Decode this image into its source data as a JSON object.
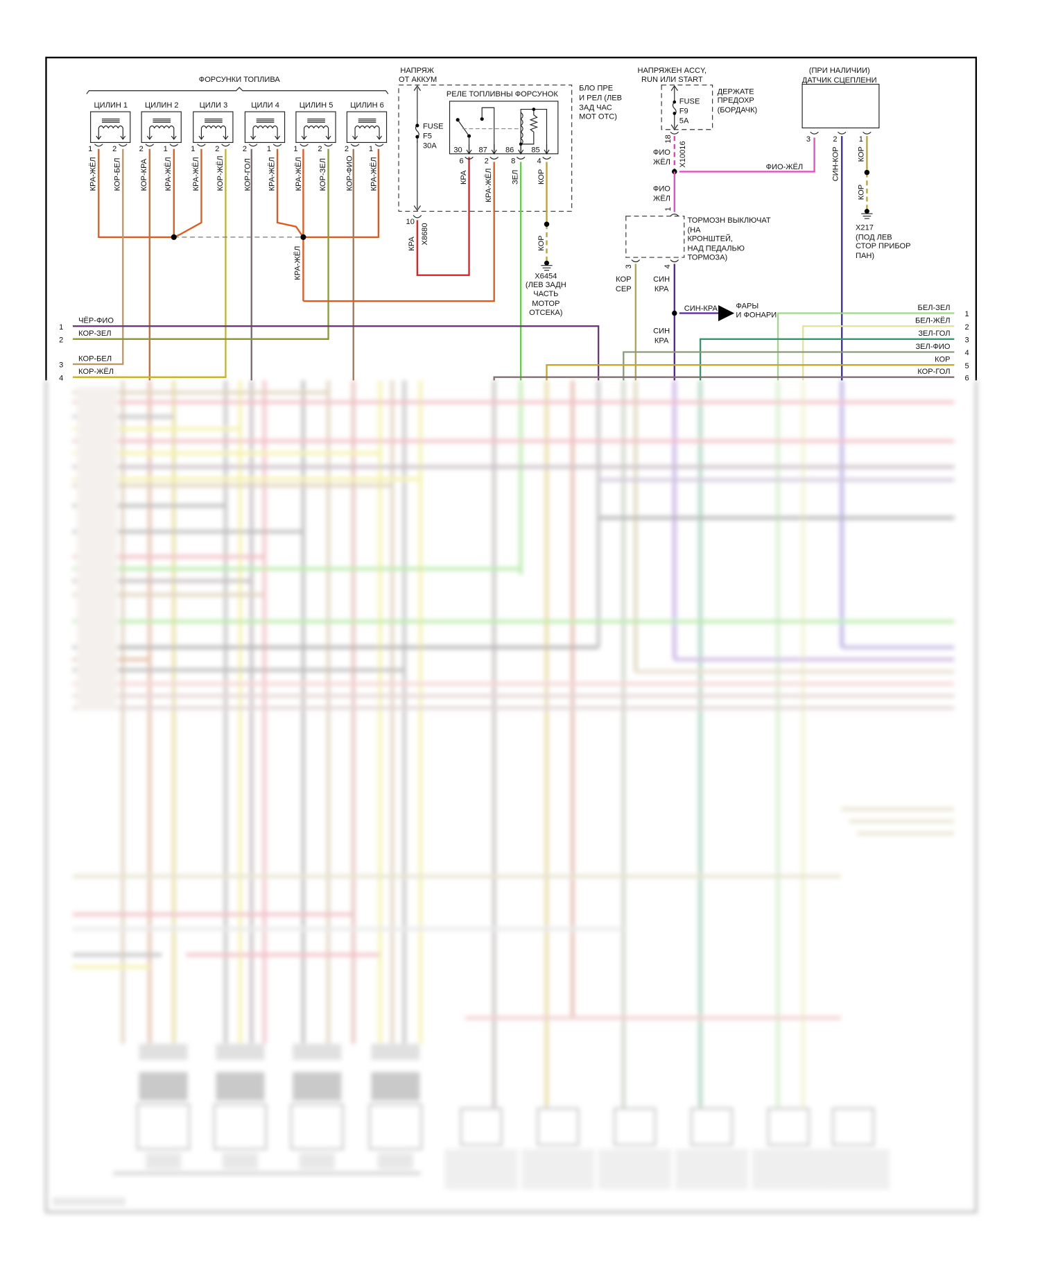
{
  "injectors": {
    "title": "ФОРСУНКИ ТОПЛИВА",
    "items": [
      {
        "label": "ЦИЛИН 1",
        "pins": [
          "1",
          "2"
        ],
        "wires": [
          "КРА-ЖЁЛ",
          "КОР-БЕЛ"
        ]
      },
      {
        "label": "ЦИЛИН 2",
        "pins": [
          "2",
          "1"
        ],
        "wires": [
          "КОР-КРА",
          "КРА-ЖЁЛ"
        ]
      },
      {
        "label": "ЦИЛИ 3",
        "pins": [
          "1",
          "2"
        ],
        "wires": [
          "КРА-ЖЁЛ",
          "КОР-ЖЁЛ"
        ]
      },
      {
        "label": "ЦИЛИ 4",
        "pins": [
          "2",
          "1"
        ],
        "wires": [
          "КОР-ГОЛ",
          "КРА-ЖЁЛ"
        ]
      },
      {
        "label": "ЦИЛИН 5",
        "pins": [
          "1",
          "2"
        ],
        "wires": [
          "КРА-ЖЁЛ",
          "КОР-ЗЕЛ"
        ]
      },
      {
        "label": "ЦИЛИН 6",
        "pins": [
          "2",
          "1"
        ],
        "wires": [
          "КОР-ФИО",
          "КРА-ЖЁЛ"
        ]
      }
    ],
    "splice_wire": "КРА-ЖЁЛ"
  },
  "battery": {
    "label_1": "НАПРЯЖ",
    "label_2": "ОТ АККУМ",
    "fuse": [
      "FUSE",
      "F5",
      "30A"
    ],
    "pin": "10",
    "wire": "КРА",
    "connector": "X8680"
  },
  "relay": {
    "title": "РЕЛЕ ТОПЛИВНЫ ФОРСУНОК",
    "terminals": [
      "30",
      "87",
      "86",
      "85"
    ],
    "pins": [
      "6",
      "2",
      "8",
      "4"
    ],
    "wires": [
      "КРА",
      "КРА-ЖЁЛ",
      "ЗЕЛ",
      "КОР"
    ],
    "box_label": [
      "БЛО ПРЕ",
      "И РЕЛ (ЛЕВ",
      "ЗАД ЧАС",
      "МОТ ОТС)"
    ],
    "ground_wire": "КОР",
    "ground": [
      "X6454",
      "(ЛЕВ ЗАДН",
      "ЧАСТЬ",
      "МОТОР",
      "ОТСЕКА)"
    ]
  },
  "accy": {
    "label_1": "НАПРЯЖЕН ACCY,",
    "label_2": "RUN ИЛИ START",
    "fuse": [
      "FUSE",
      "F9",
      "5A"
    ],
    "holder": [
      "ДЕРЖАТЕ",
      "ПРЕДОХР",
      "(БОРДАЧК)"
    ],
    "pin": "18",
    "connector": "X10016",
    "wire_1": [
      "ФИО",
      "ЖЁЛ"
    ],
    "wire_2": [
      "ФИО",
      "ЖЁЛ"
    ],
    "branch_wire": "ФИО-ЖЁЛ"
  },
  "brake_switch": {
    "label": [
      "ТОРМОЗН ВЫКЛЮЧАТ",
      "(НА",
      "КРОНШТЕЙ,",
      "НАД ПЕДАЛЬЮ",
      "ТОРМОЗА)"
    ],
    "pin_in": "1",
    "pins": [
      "3",
      "4"
    ],
    "wire_3": [
      "КОР",
      "СЕР"
    ],
    "wire_4": [
      "СИН",
      "КРА"
    ],
    "wire_4b": [
      "СИН",
      "КРА"
    ],
    "arrow_wire": "СИН-КРА",
    "arrow_target": [
      "ФАРЫ",
      "И ФОНАРИ"
    ]
  },
  "clutch": {
    "label_1": "(ПРИ НАЛИЧИИ)",
    "label_2": "ДАТЧИК СЦЕПЛЕНИ",
    "pins": [
      "3",
      "2",
      "1"
    ],
    "wire_2": "СИН-КОР",
    "wire_1": "КОР",
    "ground_wire": "КОР",
    "ground": [
      "X217",
      "(ПОД ЛЕВ",
      "СТОР ПРИБОР",
      "ПАН)"
    ]
  },
  "left_rows": [
    {
      "num": "1",
      "wire": "ЧЁР-ФИО",
      "color": "#6a3a78"
    },
    {
      "num": "2",
      "wire": "КОР-ЗЕЛ",
      "color": "#8a9a30"
    },
    {
      "num": "3",
      "wire": "КОР-БЕЛ",
      "color": "#b89a6a"
    },
    {
      "num": "4",
      "wire": "КОР-ЖЁЛ",
      "color": "#c8b428"
    }
  ],
  "right_rows": [
    {
      "num": "1",
      "wire": "БЕЛ-ЗЕЛ",
      "color": "#9fd88a"
    },
    {
      "num": "2",
      "wire": "БЕЛ-ЖЁЛ",
      "color": "#e3e39a"
    },
    {
      "num": "3",
      "wire": "ЗЕЛ-ГОЛ",
      "color": "#2e9a6a"
    },
    {
      "num": "4",
      "wire": "ЗЕЛ-ФИО",
      "color": "#8a9a7a"
    },
    {
      "num": "5",
      "wire": "КОР",
      "color": "#c8a820"
    },
    {
      "num": "6",
      "wire": "КОР-ГОЛ",
      "color": "#807070"
    }
  ],
  "colors": {
    "kra_zhel": "#e05a1e",
    "kra": "#e02020",
    "zel": "#5fd040",
    "kor": "#c0a030",
    "fio_zhel": "#e040c0",
    "sin_kra": "#5a20a0",
    "sin_kor": "#3a2ab0",
    "kor_bel": "#b89a6a",
    "kor_kra": "#c0703a",
    "kor_zhel": "#c8b428",
    "kor_gol": "#7a6a70",
    "kor_zel": "#8a9a30",
    "kor_fio": "#a07858",
    "kor_ser": "#b0a060"
  }
}
